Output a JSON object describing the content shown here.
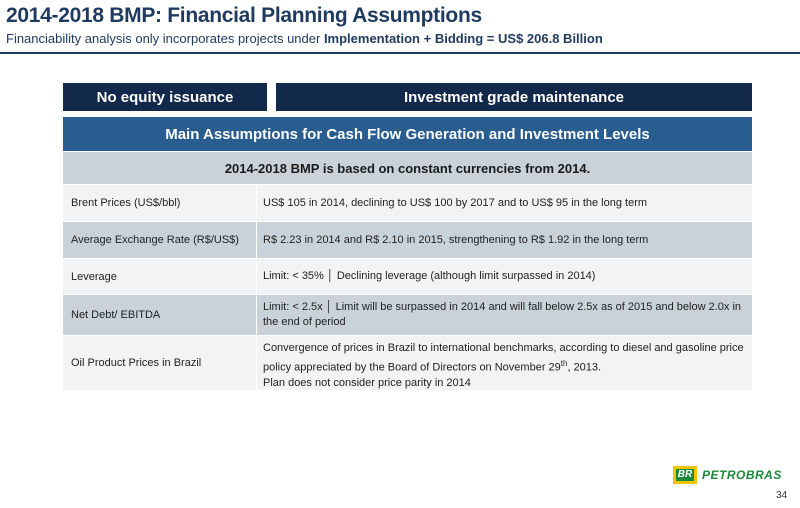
{
  "header": {
    "title": "2014-2018 BMP: Financial Planning Assumptions",
    "subtitle_prefix": "Financiability analysis only incorporates projects under ",
    "subtitle_bold": "Implementation + Bidding = US$ 206.8 Billion"
  },
  "boxes": {
    "left": "No equity issuance",
    "right": "Investment grade maintenance"
  },
  "table": {
    "main_header": "Main Assumptions for Cash Flow Generation and Investment Levels",
    "sub_header": "2014-2018 BMP is based on constant currencies from 2014.",
    "rows": [
      {
        "label": "Brent Prices (US$/bbl)",
        "value": "US$ 105 in 2014, declining to US$ 100 by 2017 and to US$ 95 in the long term"
      },
      {
        "label": "Average Exchange Rate (R$/US$)",
        "value": "R$ 2.23 in 2014 and R$ 2.10 in 2015, strengthening to R$ 1.92 in the long term"
      },
      {
        "label": "Leverage",
        "value": "Limit:  < 35%  │  Declining leverage (although limit surpassed in 2014)"
      },
      {
        "label": "Net Debt/ EBITDA",
        "value": "Limit:  < 2.5x  │  Limit will be surpassed in 2014 and will fall below 2.5x as of 2015 and below 2.0x in the end of period"
      },
      {
        "label": "Oil Product Prices in Brazil",
        "value_line1": "Convergence of prices in Brazil to international benchmarks, according to diesel and gasoline price policy appreciated by the Board of Directors on November 29",
        "value_sup": "th",
        "value_line1_end": ", 2013.",
        "value_line2": "Plan does not consider price parity in 2014"
      }
    ]
  },
  "logo": {
    "mark": "BR",
    "text": "PETROBRAS"
  },
  "page_number": "34"
}
